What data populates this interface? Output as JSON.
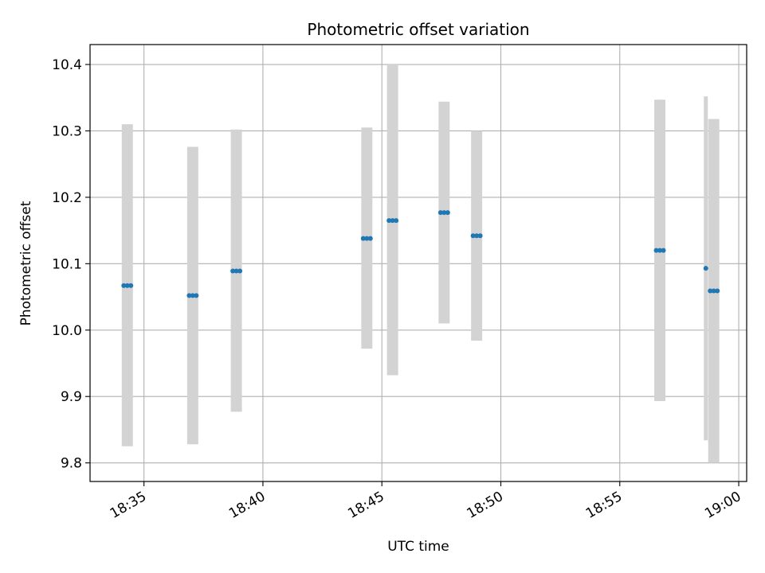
{
  "chart_data": {
    "type": "scatter",
    "title": "Photometric offset variation",
    "xlabel": "UTC time",
    "ylabel": "Photometric offset",
    "x_ticks": [
      "18:35",
      "18:40",
      "18:45",
      "18:50",
      "18:55",
      "19:00"
    ],
    "y_ticks": [
      "9.8",
      "9.9",
      "10.0",
      "10.1",
      "10.2",
      "10.3",
      "10.4"
    ],
    "xlim": [
      "18:32:44",
      "19:00:20"
    ],
    "ylim": [
      9.772,
      10.43
    ],
    "grid": true,
    "colors": {
      "point": "#1f77b4",
      "errorbar": "#d3d3d3",
      "grid": "#b0b0b0"
    },
    "points": [
      {
        "x": "18:34:09",
        "y": 10.067,
        "yerr": [
          9.825,
          10.31
        ]
      },
      {
        "x": "18:34:18",
        "y": 10.067,
        "yerr": [
          9.825,
          10.31
        ]
      },
      {
        "x": "18:34:27",
        "y": 10.067,
        "yerr": [
          9.825,
          10.31
        ]
      },
      {
        "x": "18:36:54",
        "y": 10.052,
        "yerr": [
          9.828,
          10.276
        ]
      },
      {
        "x": "18:37:03",
        "y": 10.052,
        "yerr": [
          9.828,
          10.276
        ]
      },
      {
        "x": "18:37:12",
        "y": 10.052,
        "yerr": [
          9.828,
          10.276
        ]
      },
      {
        "x": "18:38:44",
        "y": 10.089,
        "yerr": [
          9.877,
          10.302
        ]
      },
      {
        "x": "18:38:53",
        "y": 10.089,
        "yerr": [
          9.877,
          10.302
        ]
      },
      {
        "x": "18:39:02",
        "y": 10.089,
        "yerr": [
          9.877,
          10.302
        ]
      },
      {
        "x": "18:44:13",
        "y": 10.138,
        "yerr": [
          9.972,
          10.305
        ]
      },
      {
        "x": "18:44:22",
        "y": 10.138,
        "yerr": [
          9.972,
          10.305
        ]
      },
      {
        "x": "18:44:31",
        "y": 10.138,
        "yerr": [
          9.972,
          10.305
        ]
      },
      {
        "x": "18:45:18",
        "y": 10.165,
        "yerr": [
          9.932,
          10.4
        ]
      },
      {
        "x": "18:45:27",
        "y": 10.165,
        "yerr": [
          9.932,
          10.4
        ]
      },
      {
        "x": "18:45:36",
        "y": 10.165,
        "yerr": [
          9.932,
          10.4
        ]
      },
      {
        "x": "18:47:28",
        "y": 10.177,
        "yerr": [
          10.01,
          10.344
        ]
      },
      {
        "x": "18:47:37",
        "y": 10.177,
        "yerr": [
          10.01,
          10.344
        ]
      },
      {
        "x": "18:47:46",
        "y": 10.177,
        "yerr": [
          10.01,
          10.344
        ]
      },
      {
        "x": "18:48:50",
        "y": 10.142,
        "yerr": [
          9.984,
          10.3
        ]
      },
      {
        "x": "18:48:59",
        "y": 10.142,
        "yerr": [
          9.984,
          10.3
        ]
      },
      {
        "x": "18:49:08",
        "y": 10.142,
        "yerr": [
          9.984,
          10.3
        ]
      },
      {
        "x": "18:56:32",
        "y": 10.12,
        "yerr": [
          9.893,
          10.347
        ]
      },
      {
        "x": "18:56:41",
        "y": 10.12,
        "yerr": [
          9.893,
          10.347
        ]
      },
      {
        "x": "18:56:50",
        "y": 10.12,
        "yerr": [
          9.893,
          10.347
        ]
      },
      {
        "x": "18:58:37",
        "y": 10.093,
        "yerr": [
          9.834,
          10.352
        ]
      },
      {
        "x": "18:58:48",
        "y": 10.059,
        "yerr": [
          9.8,
          10.318
        ]
      },
      {
        "x": "18:58:57",
        "y": 10.059,
        "yerr": [
          9.8,
          10.318
        ]
      },
      {
        "x": "18:59:06",
        "y": 10.059,
        "yerr": [
          9.8,
          10.318
        ]
      }
    ]
  }
}
